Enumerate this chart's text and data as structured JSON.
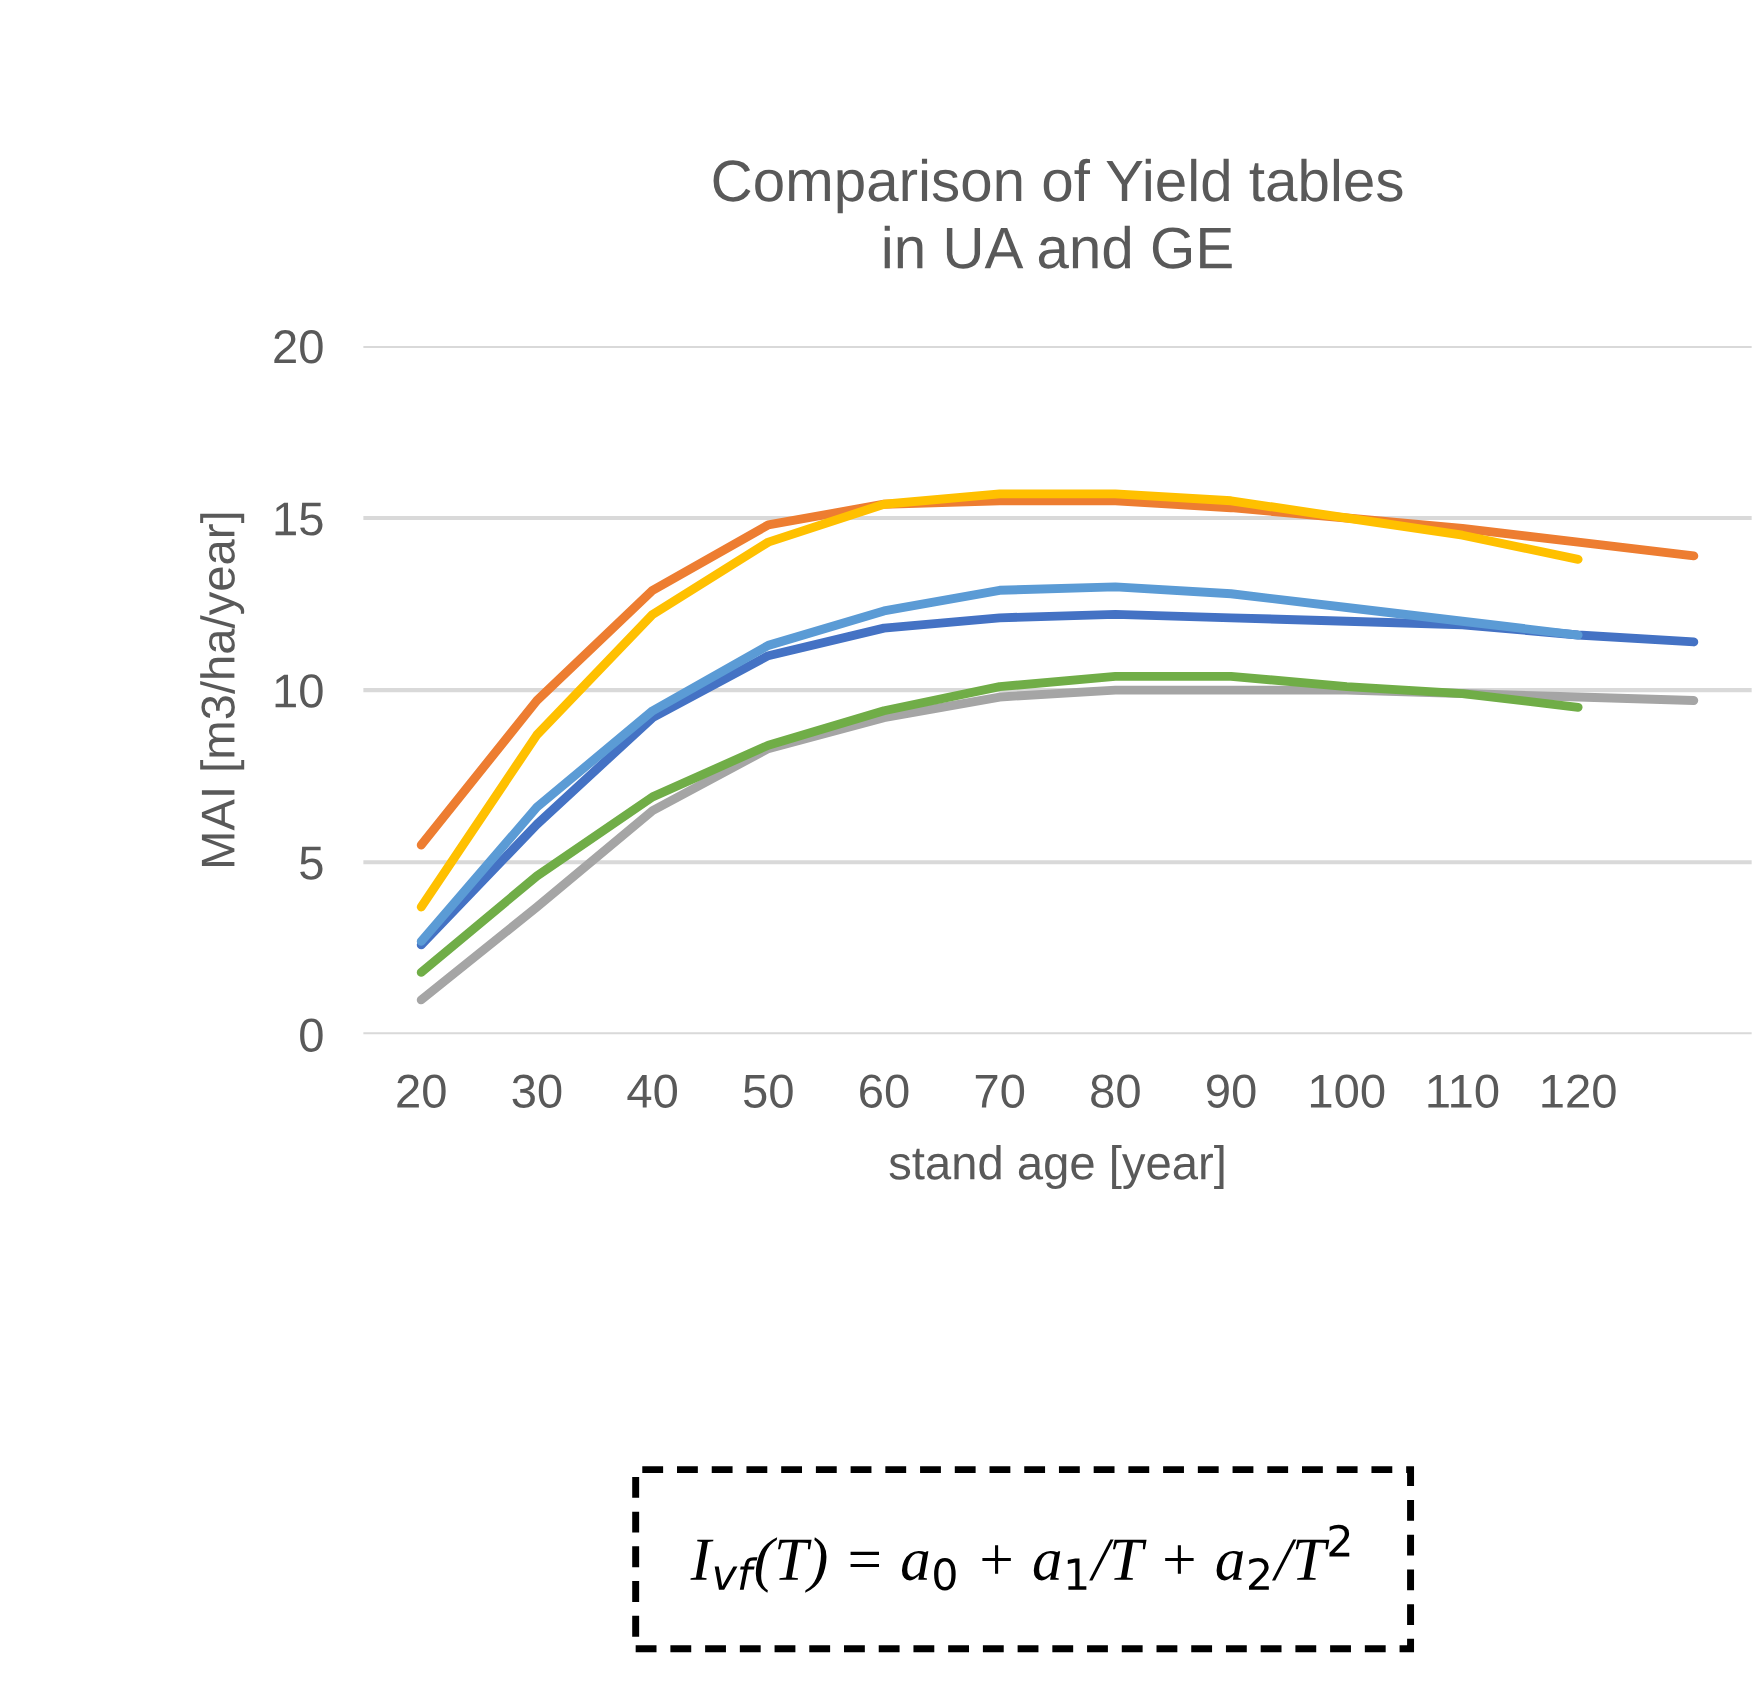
{
  "chart_data": {
    "type": "line",
    "title": "Comparison of Yield tables\nin UA and GE",
    "xlabel": "stand age [year]",
    "ylabel": "MAI [m3/ha/year]",
    "categories": [
      "20",
      "30",
      "40",
      "50",
      "60",
      "70",
      "80",
      "90",
      "100",
      "110",
      "120",
      null
    ],
    "series": [
      {
        "color": "#ed7d31",
        "values": [
          5.5,
          9.7,
          12.9,
          14.8,
          15.4,
          15.5,
          15.5,
          15.3,
          15.0,
          14.7,
          14.3,
          13.9
        ]
      },
      {
        "color": "#ffc000",
        "values": [
          3.7,
          8.7,
          12.2,
          14.3,
          15.4,
          15.7,
          15.7,
          15.5,
          15.0,
          14.5,
          13.8,
          null
        ]
      },
      {
        "color": "#4472c4",
        "values": [
          2.6,
          6.1,
          9.2,
          11.0,
          11.8,
          12.1,
          12.2,
          12.1,
          12.0,
          11.9,
          11.6,
          11.4
        ]
      },
      {
        "color": "#5b9bd5",
        "values": [
          2.7,
          6.6,
          9.4,
          11.3,
          12.3,
          12.9,
          13.0,
          12.8,
          12.4,
          12.0,
          11.6,
          null
        ]
      },
      {
        "color": "#a5a5a5",
        "values": [
          1.0,
          3.7,
          6.5,
          8.3,
          9.2,
          9.8,
          10.0,
          10.0,
          10.0,
          9.9,
          9.8,
          9.7
        ]
      },
      {
        "color": "#70ad47",
        "values": [
          1.8,
          4.6,
          6.9,
          8.4,
          9.4,
          10.1,
          10.4,
          10.4,
          10.1,
          9.9,
          9.5,
          null
        ]
      }
    ],
    "ylim": [
      0,
      20
    ],
    "yticks": [
      0,
      5,
      10,
      15,
      20
    ],
    "grid": "y",
    "marker": "none",
    "line_style": "solid",
    "annotations": [
      "I$_{vf}$(T) = a$_{0}$ + a$_{1}$/T + a$_{2}$/T$^{2}$"
    ]
  }
}
